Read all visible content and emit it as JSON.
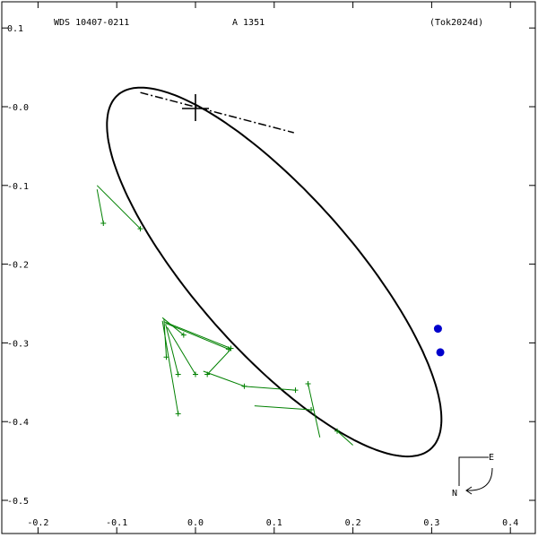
{
  "header": {
    "wds": "WDS 10407-0211",
    "pair": "A  1351",
    "ref": "(Tok2024d)"
  },
  "compass": {
    "east": "E",
    "north": "N"
  },
  "chart_data": {
    "type": "scatter",
    "title": "",
    "xlabel": "",
    "ylabel": "",
    "xlim": [
      -0.2,
      0.43
    ],
    "ylim": [
      -0.54,
      0.13
    ],
    "x_ticks": [
      -0.2,
      -0.1,
      0.0,
      0.1,
      0.2,
      0.3,
      0.4
    ],
    "x_tick_labels": [
      "-0.2",
      "-0.1",
      "0.0",
      "0.1",
      "0.2",
      "0.3",
      "0.4"
    ],
    "y_ticks": [
      0.1,
      0.0,
      -0.1,
      -0.2,
      -0.3,
      -0.4,
      -0.5
    ],
    "y_tick_labels": [
      "0.1",
      "-0.0",
      "-0.1",
      "-0.2",
      "-0.3",
      "-0.4",
      "-0.5"
    ],
    "grid": false,
    "primary_marker": {
      "x": 0.0,
      "y": 0.0
    },
    "orbit": {
      "center": [
        0.1,
        -0.21
      ],
      "semi_major": 0.3,
      "semi_minor": 0.1,
      "angle_deg": -48.5
    },
    "line_of_nodes": [
      [
        -0.07,
        0.018
      ],
      [
        0.125,
        -0.033
      ]
    ],
    "observations": [
      {
        "obs": [
          -0.07,
          -0.155
        ],
        "orbit": [
          -0.125,
          -0.1
        ]
      },
      {
        "obs": [
          -0.117,
          -0.148
        ],
        "orbit": [
          -0.125,
          -0.105
        ]
      },
      {
        "obs": [
          -0.015,
          -0.29
        ],
        "orbit": [
          -0.042,
          -0.268
        ]
      },
      {
        "obs": [
          0.045,
          -0.307
        ],
        "orbit": [
          -0.04,
          -0.273
        ]
      },
      {
        "obs": [
          0.042,
          -0.308
        ],
        "orbit": [
          -0.038,
          -0.275
        ]
      },
      {
        "obs": [
          -0.037,
          -0.318
        ],
        "orbit": [
          -0.04,
          -0.27
        ]
      },
      {
        "obs": [
          -0.022,
          -0.34
        ],
        "orbit": [
          -0.038,
          -0.276
        ]
      },
      {
        "obs": [
          -0.022,
          -0.39
        ],
        "orbit": [
          -0.042,
          -0.272
        ]
      },
      {
        "obs": [
          0.0,
          -0.34
        ],
        "orbit": [
          -0.036,
          -0.28
        ]
      },
      {
        "obs": [
          0.015,
          -0.34
        ],
        "orbit": [
          0.045,
          -0.308
        ]
      },
      {
        "obs": [
          0.062,
          -0.355
        ],
        "orbit": [
          0.01,
          -0.336
        ]
      },
      {
        "obs": [
          0.127,
          -0.36
        ],
        "orbit": [
          0.06,
          -0.355
        ]
      },
      {
        "obs": [
          0.143,
          -0.352
        ],
        "orbit": [
          0.158,
          -0.42
        ]
      },
      {
        "obs": [
          0.147,
          -0.385
        ],
        "orbit": [
          0.075,
          -0.38
        ]
      },
      {
        "obs": [
          0.18,
          -0.412
        ],
        "orbit": [
          0.2,
          -0.43
        ]
      }
    ],
    "highlighted_points": [
      {
        "x": 0.308,
        "y": -0.282
      },
      {
        "x": 0.311,
        "y": -0.312
      }
    ],
    "colors": {
      "axes": "#000000",
      "orbit": "#000000",
      "observations": "#008000",
      "highlighted": "#0000cc"
    }
  }
}
